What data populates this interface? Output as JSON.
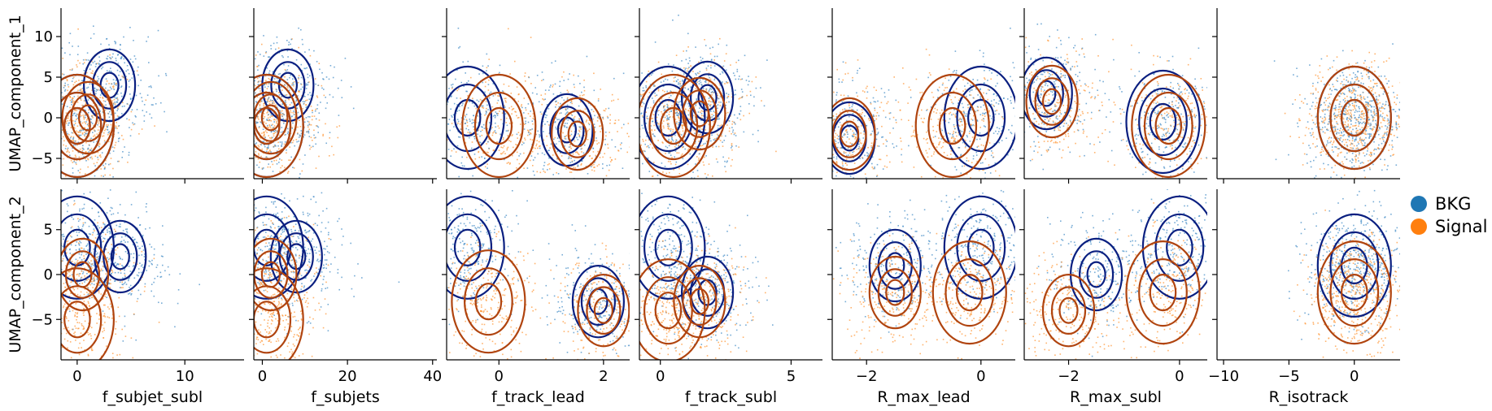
{
  "chart_data": {
    "type": "scatter",
    "layout": "pairplot-grid",
    "rows": [
      {
        "ylabel": "UMAP_component_1",
        "ylim": [
          -7.5,
          13.5
        ],
        "yticks": [
          -5,
          0,
          5,
          10
        ]
      },
      {
        "ylabel": "UMAP_component_2",
        "ylim": [
          -9.5,
          9.5
        ],
        "yticks": [
          -5,
          0,
          5
        ]
      }
    ],
    "columns": [
      {
        "xlabel": "f_subjet_subl",
        "xlim": [
          -1.5,
          15.5
        ],
        "xticks": [
          0,
          10
        ]
      },
      {
        "xlabel": "f_subjets",
        "xlim": [
          -2,
          41
        ],
        "xticks": [
          0,
          20,
          40
        ]
      },
      {
        "xlabel": "f_track_lead",
        "xlim": [
          -1.0,
          2.5
        ],
        "xticks": [
          0,
          2
        ]
      },
      {
        "xlabel": "f_track_subl",
        "xlim": [
          -0.8,
          6.2
        ],
        "xticks": [
          0,
          5
        ]
      },
      {
        "xlabel": "R_max_lead",
        "xlim": [
          -2.6,
          0.6
        ],
        "xticks": [
          -2,
          0
        ]
      },
      {
        "xlabel": "R_max_subl",
        "xlim": [
          -2.8,
          0.5
        ],
        "xticks": [
          -2,
          0
        ]
      },
      {
        "xlabel": "R_isotrack",
        "xlim": [
          -10.5,
          3.5
        ],
        "xticks": [
          -10,
          -5,
          0
        ]
      }
    ],
    "legend": {
      "placement": "right",
      "entries": [
        {
          "label": "BKG",
          "color": "#1f77b4"
        },
        {
          "label": "Signal",
          "color": "#ff7f0e"
        }
      ]
    },
    "series": [
      {
        "name": "BKG",
        "point_color": "#4a90c8",
        "contour_color": "#0a1f80"
      },
      {
        "name": "Signal",
        "point_color": "#ff9a3c",
        "contour_color": "#b0440f"
      }
    ],
    "panels": [
      [
        {
          "bkg": [
            [
              0,
              -1
            ],
            [
              3,
              4
            ]
          ],
          "sig": [
            [
              0,
              -1
            ],
            [
              1,
              0
            ]
          ]
        },
        {
          "bkg": [
            [
              1,
              -1
            ],
            [
              6,
              4
            ]
          ],
          "sig": [
            [
              1,
              -1
            ],
            [
              2,
              0
            ]
          ]
        },
        {
          "bkg": [
            [
              -0.6,
              0
            ],
            [
              1.3,
              -1.5
            ]
          ],
          "sig": [
            [
              0,
              -1
            ],
            [
              1.5,
              -2
            ]
          ]
        },
        {
          "bkg": [
            [
              0.3,
              0
            ],
            [
              1.8,
              2.5
            ]
          ],
          "sig": [
            [
              0.5,
              -1
            ],
            [
              1.5,
              0.5
            ]
          ]
        },
        {
          "bkg": [
            [
              0,
              0
            ],
            [
              -2.3,
              -2.5
            ]
          ],
          "sig": [
            [
              -0.5,
              -1
            ],
            [
              -2.3,
              -2
            ]
          ]
        },
        {
          "bkg": [
            [
              -0.3,
              -0.5
            ],
            [
              -2.4,
              3
            ]
          ],
          "sig": [
            [
              -0.2,
              -1
            ],
            [
              -2.3,
              2
            ]
          ]
        },
        {
          "bkg": [
            [
              0,
              0
            ]
          ],
          "sig": [
            [
              0,
              0
            ]
          ]
        }
      ],
      [
        {
          "bkg": [
            [
              0,
              3
            ],
            [
              4,
              2
            ]
          ],
          "sig": [
            [
              0,
              -5
            ],
            [
              0.5,
              0
            ]
          ]
        },
        {
          "bkg": [
            [
              1,
              3
            ],
            [
              8,
              2
            ]
          ],
          "sig": [
            [
              1,
              -5
            ],
            [
              2,
              0
            ]
          ]
        },
        {
          "bkg": [
            [
              -0.6,
              3
            ],
            [
              1.9,
              -3
            ]
          ],
          "sig": [
            [
              -0.2,
              -3
            ],
            [
              2.0,
              -4
            ]
          ]
        },
        {
          "bkg": [
            [
              0.3,
              3
            ],
            [
              1.8,
              -2
            ]
          ],
          "sig": [
            [
              0.3,
              -4
            ],
            [
              1.5,
              -3
            ]
          ]
        },
        {
          "bkg": [
            [
              0,
              3
            ],
            [
              -1.5,
              1
            ]
          ],
          "sig": [
            [
              -0.2,
              -2
            ],
            [
              -1.5,
              -2
            ]
          ]
        },
        {
          "bkg": [
            [
              0,
              3
            ],
            [
              -1.5,
              0
            ]
          ],
          "sig": [
            [
              -0.3,
              -2
            ],
            [
              -2.0,
              -4
            ]
          ]
        },
        {
          "bkg": [
            [
              0,
              1
            ]
          ],
          "sig": [
            [
              0,
              -2
            ]
          ]
        }
      ]
    ]
  }
}
